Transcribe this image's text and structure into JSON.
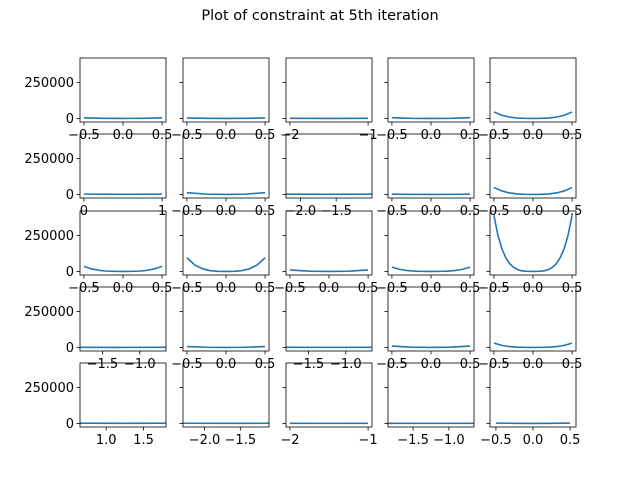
{
  "figure": {
    "title": "Plot of constraint at 5th iteration",
    "line_color": "#1f77b4"
  },
  "chart_data": {
    "type": "line",
    "title": "Plot of constraint at 5th iteration",
    "grid": "off",
    "layout": "5x5 subplots, shared y-axis",
    "shared_ylim": [
      -25000,
      420000
    ],
    "y_ticks": [
      0,
      250000
    ],
    "y_tick_labels": [
      "0",
      "250000"
    ],
    "subplots": [
      {
        "row": 0,
        "col": 0,
        "xlim": [
          -0.55,
          0.55
        ],
        "x": [
          -0.5,
          -0.25,
          0,
          0.25,
          0.5
        ],
        "y": [
          4000,
          500,
          0,
          500,
          4000
        ],
        "xticks": [
          -0.5,
          0.0,
          0.5
        ],
        "xtick_labels": [
          "−0.5",
          "0.0",
          "0.5"
        ]
      },
      {
        "row": 0,
        "col": 1,
        "xlim": [
          -0.55,
          0.55
        ],
        "x": [
          -0.5,
          -0.25,
          0,
          0.25,
          0.5
        ],
        "y": [
          3000,
          400,
          0,
          400,
          3000
        ],
        "xticks": [
          -0.5,
          0.0,
          0.5
        ],
        "xtick_labels": [
          "−0.5",
          "0.0",
          "0.5"
        ]
      },
      {
        "row": 0,
        "col": 2,
        "xlim": [
          -2.05,
          -0.95
        ],
        "x": [
          -2,
          -1.5,
          -1
        ],
        "y": [
          500,
          100,
          500
        ],
        "xticks": [
          -2,
          -1
        ],
        "xtick_labels": [
          "−2",
          "−1"
        ]
      },
      {
        "row": 0,
        "col": 3,
        "xlim": [
          -0.55,
          0.55
        ],
        "x": [
          -0.5,
          -0.25,
          0,
          0.25,
          0.5
        ],
        "y": [
          5000,
          800,
          0,
          800,
          5000
        ],
        "xticks": [
          -0.5,
          0.0,
          0.5
        ],
        "xtick_labels": [
          "−0.5",
          "0.0",
          "0.5"
        ]
      },
      {
        "row": 0,
        "col": 4,
        "xlim": [
          -0.55,
          0.55
        ],
        "x": [
          -0.5,
          -0.4,
          -0.3,
          -0.2,
          -0.1,
          0,
          0.1,
          0.2,
          0.3,
          0.4,
          0.5
        ],
        "y": [
          45000,
          22000,
          9000,
          2500,
          300,
          0,
          300,
          2500,
          9000,
          22000,
          45000
        ],
        "xticks": [
          -0.5,
          0.0,
          0.5
        ],
        "xtick_labels": [
          "−0.5",
          "0.0",
          "0.5"
        ]
      },
      {
        "row": 1,
        "col": 0,
        "xlim": [
          -0.05,
          1.05
        ],
        "x": [
          0,
          0.5,
          1
        ],
        "y": [
          2000,
          300,
          2000
        ],
        "xticks": [
          0,
          1
        ],
        "xtick_labels": [
          "0",
          "1"
        ]
      },
      {
        "row": 1,
        "col": 1,
        "xlim": [
          -0.55,
          0.55
        ],
        "x": [
          -0.5,
          -0.25,
          0,
          0.25,
          0.5
        ],
        "y": [
          12000,
          2000,
          0,
          2000,
          12000
        ],
        "xticks": [
          -0.5,
          0.0,
          0.5
        ],
        "xtick_labels": [
          "−0.5",
          "0.0",
          "0.5"
        ]
      },
      {
        "row": 1,
        "col": 2,
        "xlim": [
          -2.2,
          -1.0
        ],
        "x": [
          -2.2,
          -1.6,
          -1.0
        ],
        "y": [
          1500,
          300,
          1500
        ],
        "xticks": [
          -2.0,
          -1.5
        ],
        "xtick_labels": [
          "−2.0",
          "−1.5"
        ]
      },
      {
        "row": 1,
        "col": 3,
        "xlim": [
          -0.55,
          0.55
        ],
        "x": [
          -0.5,
          -0.25,
          0,
          0.25,
          0.5
        ],
        "y": [
          1500,
          200,
          0,
          200,
          1500
        ],
        "xticks": [
          -0.5,
          0.0,
          0.5
        ],
        "xtick_labels": [
          "−0.5",
          "0.0",
          "0.5"
        ]
      },
      {
        "row": 1,
        "col": 4,
        "xlim": [
          -0.55,
          0.55
        ],
        "x": [
          -0.5,
          -0.4,
          -0.3,
          -0.2,
          -0.1,
          0,
          0.1,
          0.2,
          0.3,
          0.4,
          0.5
        ],
        "y": [
          48000,
          24000,
          10000,
          3000,
          400,
          0,
          400,
          3000,
          10000,
          24000,
          48000
        ],
        "xticks": [
          -0.5,
          0.0,
          0.5
        ],
        "xtick_labels": [
          "−0.5",
          "0.0",
          "0.5"
        ]
      },
      {
        "row": 2,
        "col": 0,
        "xlim": [
          -0.55,
          0.55
        ],
        "x": [
          -0.5,
          -0.4,
          -0.3,
          -0.2,
          -0.1,
          0,
          0.1,
          0.2,
          0.3,
          0.4,
          0.5
        ],
        "y": [
          35000,
          17000,
          7000,
          2000,
          300,
          0,
          300,
          2000,
          7000,
          17000,
          35000
        ],
        "xticks": [
          -0.5,
          0.0,
          0.5
        ],
        "xtick_labels": [
          "−0.5",
          "0.0",
          "0.5"
        ]
      },
      {
        "row": 2,
        "col": 1,
        "xlim": [
          -0.55,
          0.55
        ],
        "x": [
          -0.5,
          -0.4,
          -0.3,
          -0.2,
          -0.1,
          0,
          0.1,
          0.2,
          0.3,
          0.4,
          0.5
        ],
        "y": [
          95000,
          45000,
          18000,
          5000,
          700,
          0,
          700,
          5000,
          18000,
          45000,
          95000
        ],
        "xticks": [
          -0.5,
          0.0,
          0.5
        ],
        "xtick_labels": [
          "−0.5",
          "0.0",
          "0.5"
        ]
      },
      {
        "row": 2,
        "col": 2,
        "xlim": [
          -0.55,
          0.55
        ],
        "x": [
          -0.5,
          -0.25,
          0,
          0.25,
          0.5
        ],
        "y": [
          10000,
          1500,
          0,
          1500,
          10000
        ],
        "xticks": [
          -0.5,
          0.0,
          0.5
        ],
        "xtick_labels": [
          "−0.5",
          "0.0",
          "0.5"
        ]
      },
      {
        "row": 2,
        "col": 3,
        "xlim": [
          -0.55,
          0.55
        ],
        "x": [
          -0.5,
          -0.4,
          -0.3,
          -0.2,
          -0.1,
          0,
          0.1,
          0.2,
          0.3,
          0.4,
          0.5
        ],
        "y": [
          30000,
          14000,
          5500,
          1500,
          200,
          0,
          200,
          1500,
          5500,
          14000,
          30000
        ],
        "xticks": [
          -0.5,
          0.0,
          0.5
        ],
        "xtick_labels": [
          "−0.5",
          "0.0",
          "0.5"
        ]
      },
      {
        "row": 2,
        "col": 4,
        "xlim": [
          -0.55,
          0.55
        ],
        "x": [
          -0.5,
          -0.45,
          -0.4,
          -0.35,
          -0.3,
          -0.25,
          -0.2,
          -0.15,
          -0.1,
          -0.05,
          0,
          0.05,
          0.1,
          0.15,
          0.2,
          0.25,
          0.3,
          0.35,
          0.4,
          0.45,
          0.5
        ],
        "y": [
          390000,
          255000,
          160000,
          97000,
          55000,
          29000,
          13000,
          5000,
          1500,
          200,
          0,
          200,
          1500,
          5000,
          13000,
          29000,
          55000,
          97000,
          160000,
          255000,
          390000
        ],
        "xticks": [
          -0.5,
          0.0,
          0.5
        ],
        "xtick_labels": [
          "−0.5",
          "0.0",
          "0.5"
        ]
      },
      {
        "row": 3,
        "col": 0,
        "xlim": [
          -1.8,
          -0.65
        ],
        "x": [
          -1.8,
          -1.2,
          -0.65
        ],
        "y": [
          500,
          100,
          500
        ],
        "xticks": [
          -1.5,
          -1.0
        ],
        "xtick_labels": [
          "−1.5",
          "−1.0"
        ]
      },
      {
        "row": 3,
        "col": 1,
        "xlim": [
          -0.55,
          0.55
        ],
        "x": [
          -0.5,
          -0.25,
          0,
          0.25,
          0.5
        ],
        "y": [
          6000,
          1000,
          0,
          1000,
          6000
        ],
        "xticks": [
          -0.5,
          0.0,
          0.5
        ],
        "xtick_labels": [
          "−0.5",
          "0.0",
          "0.5"
        ]
      },
      {
        "row": 3,
        "col": 2,
        "xlim": [
          -1.8,
          -0.65
        ],
        "x": [
          -1.8,
          -1.2,
          -0.65
        ],
        "y": [
          800,
          200,
          800
        ],
        "xticks": [
          -1.5,
          -1.0
        ],
        "xtick_labels": [
          "−1.5",
          "−1.0"
        ]
      },
      {
        "row": 3,
        "col": 3,
        "xlim": [
          -0.55,
          0.55
        ],
        "x": [
          -0.5,
          -0.25,
          0,
          0.25,
          0.5
        ],
        "y": [
          9000,
          1500,
          0,
          1500,
          9000
        ],
        "xticks": [
          -0.5,
          0.0,
          0.5
        ],
        "xtick_labels": [
          "−0.5",
          "0.0",
          "0.5"
        ]
      },
      {
        "row": 3,
        "col": 4,
        "xlim": [
          -0.55,
          0.55
        ],
        "x": [
          -0.5,
          -0.4,
          -0.3,
          -0.2,
          -0.1,
          0,
          0.1,
          0.2,
          0.3,
          0.4,
          0.5
        ],
        "y": [
          30000,
          14000,
          5500,
          1500,
          200,
          0,
          200,
          1500,
          5500,
          14000,
          30000
        ],
        "xticks": [
          -0.5,
          0.0,
          0.5
        ],
        "xtick_labels": [
          "−0.5",
          "0.0",
          "0.5"
        ]
      },
      {
        "row": 4,
        "col": 0,
        "xlim": [
          0.65,
          1.8
        ],
        "x": [
          0.65,
          1.2,
          1.8
        ],
        "y": [
          1200,
          400,
          1200
        ],
        "xticks": [
          1.0,
          1.5
        ],
        "xtick_labels": [
          "1.0",
          "1.5"
        ]
      },
      {
        "row": 4,
        "col": 1,
        "xlim": [
          -2.3,
          -1.1
        ],
        "x": [
          -2.3,
          -1.7,
          -1.1
        ],
        "y": [
          1000,
          300,
          1000
        ],
        "xticks": [
          -2.0,
          -1.5
        ],
        "xtick_labels": [
          "−2.0",
          "−1.5"
        ]
      },
      {
        "row": 4,
        "col": 2,
        "xlim": [
          -2.05,
          -0.95
        ],
        "x": [
          -2,
          -1.5,
          -1
        ],
        "y": [
          700,
          200,
          700
        ],
        "xticks": [
          -2,
          -1
        ],
        "xtick_labels": [
          "−2",
          "−1"
        ]
      },
      {
        "row": 4,
        "col": 3,
        "xlim": [
          -1.85,
          -0.65
        ],
        "x": [
          -1.85,
          -1.25,
          -0.65
        ],
        "y": [
          600,
          200,
          600
        ],
        "xticks": [
          -1.5,
          -1.0
        ],
        "xtick_labels": [
          "−1.5",
          "−1.0"
        ]
      },
      {
        "row": 4,
        "col": 4,
        "xlim": [
          -0.58,
          0.58
        ],
        "x": [
          -0.5,
          -0.25,
          0,
          0.25,
          0.5
        ],
        "y": [
          2500,
          400,
          0,
          400,
          2500
        ],
        "xticks": [
          -0.5,
          0.0,
          0.5
        ],
        "xtick_labels": [
          "−0.5",
          "0.0",
          "0.5"
        ]
      }
    ]
  }
}
